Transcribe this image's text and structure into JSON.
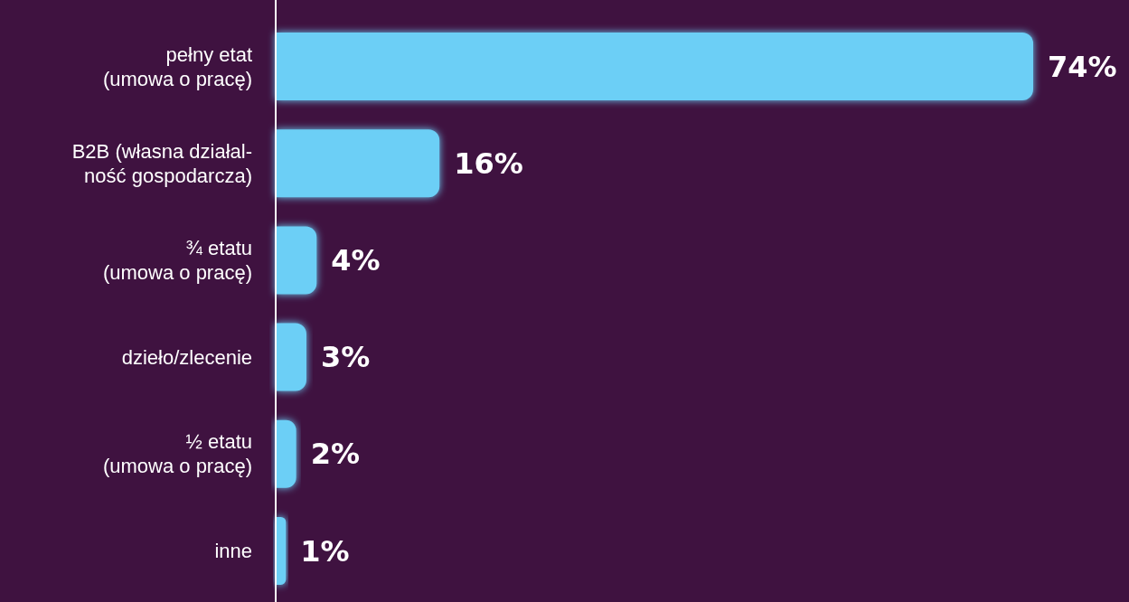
{
  "chart_data": {
    "type": "bar",
    "orientation": "horizontal",
    "categories": [
      "pełny etat\n(umowa o pracę)",
      "B2B (własna działal-\nność gospodarcza)",
      "¾ etatu\n(umowa o pracę)",
      "dzieło/zlecenie",
      "½ etatu\n(umowa o pracę)",
      "inne"
    ],
    "values": [
      74,
      16,
      4,
      3,
      2,
      1
    ],
    "value_labels": [
      "74%",
      "16%",
      "4%",
      "3%",
      "2%",
      "1%"
    ],
    "color": "#6ccff6"
  }
}
